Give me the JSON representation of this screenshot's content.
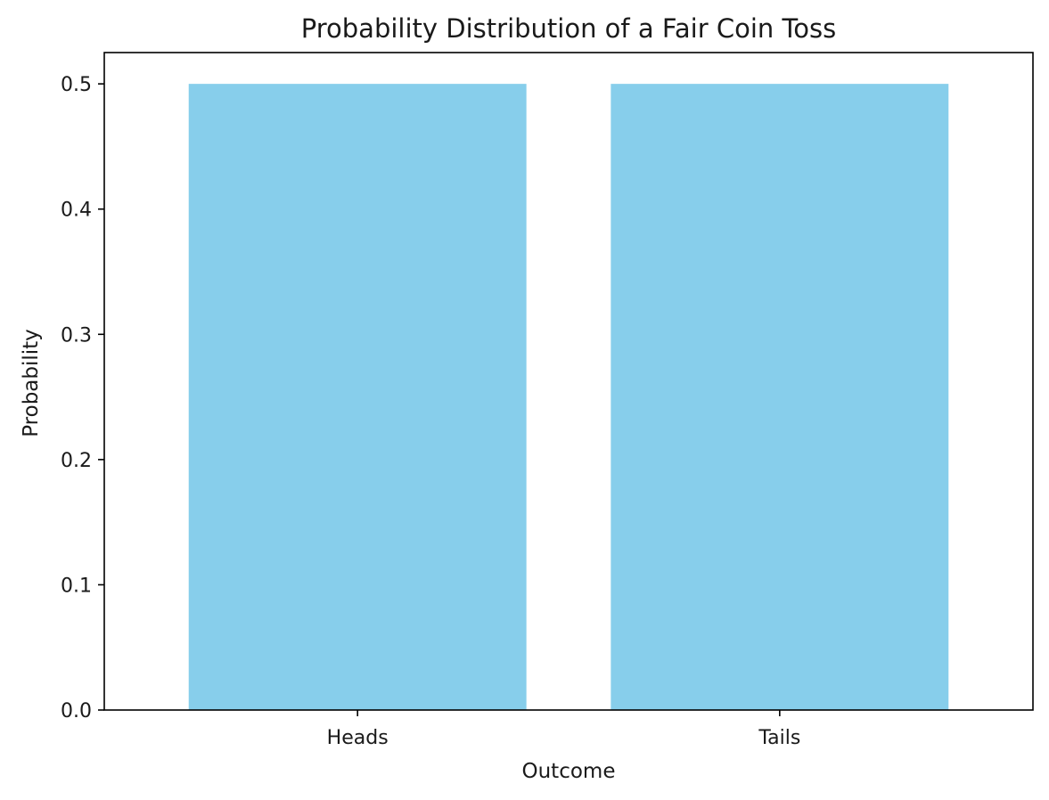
{
  "chart_data": {
    "type": "bar",
    "title": "Probability Distribution of a Fair Coin Toss",
    "xlabel": "Outcome",
    "ylabel": "Probability",
    "categories": [
      "Heads",
      "Tails"
    ],
    "values": [
      0.5,
      0.5
    ],
    "ylim": [
      0,
      0.525
    ],
    "yticks": [
      "0.0",
      "0.1",
      "0.2",
      "0.3",
      "0.4",
      "0.5"
    ],
    "grid": false,
    "colors": {
      "bar": "#87ceeb",
      "axis": "#000000",
      "text": "#1a1a1a"
    }
  }
}
